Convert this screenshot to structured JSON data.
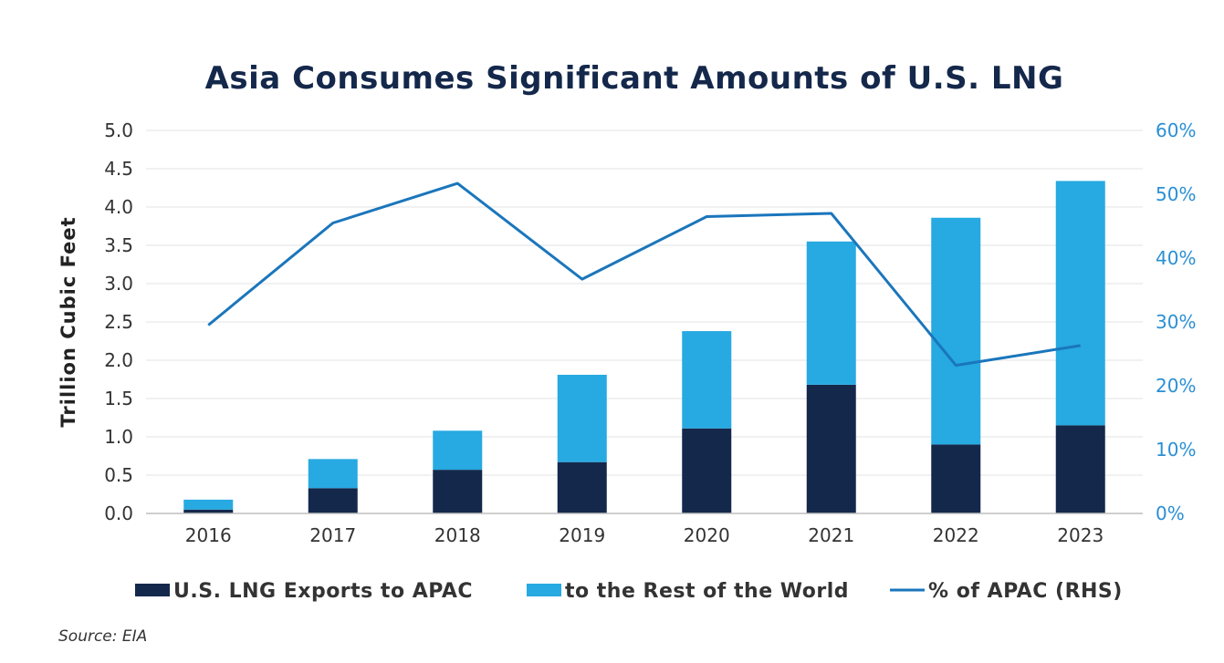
{
  "chart_data": {
    "type": "bar",
    "stacked": true,
    "title": "Asia Consumes Significant Amounts of U.S. LNG",
    "ylabel": "Trillion  Cubic Feet",
    "ylim": [
      0,
      5.0
    ],
    "yticks": [
      "0.0",
      "0.5",
      "1.0",
      "1.5",
      "2.0",
      "2.5",
      "3.0",
      "3.5",
      "4.0",
      "4.5",
      "5.0"
    ],
    "y2lim": [
      0,
      60
    ],
    "y2ticks": [
      "0%",
      "10%",
      "20%",
      "30%",
      "40%",
      "50%",
      "60%"
    ],
    "categories": [
      "2016",
      "2017",
      "2018",
      "2019",
      "2020",
      "2021",
      "2022",
      "2023"
    ],
    "series": [
      {
        "name": "U.S. LNG Exports to APAC",
        "type": "bar",
        "color": "#14284b",
        "values": [
          0.05,
          0.33,
          0.57,
          0.67,
          1.11,
          1.68,
          0.9,
          1.15
        ]
      },
      {
        "name": "to the Rest of the World",
        "type": "bar",
        "color": "#27a9e1",
        "values": [
          0.13,
          0.38,
          0.51,
          1.14,
          1.27,
          1.87,
          2.96,
          3.19
        ]
      },
      {
        "name": "% of APAC (RHS)",
        "type": "line",
        "axis": "right",
        "color": "#1a76bc",
        "values": [
          29.5,
          45.5,
          51.7,
          36.7,
          46.5,
          47.0,
          23.2,
          26.3
        ]
      }
    ],
    "grid": true,
    "legend": "bottom",
    "source": "Source: EIA"
  }
}
